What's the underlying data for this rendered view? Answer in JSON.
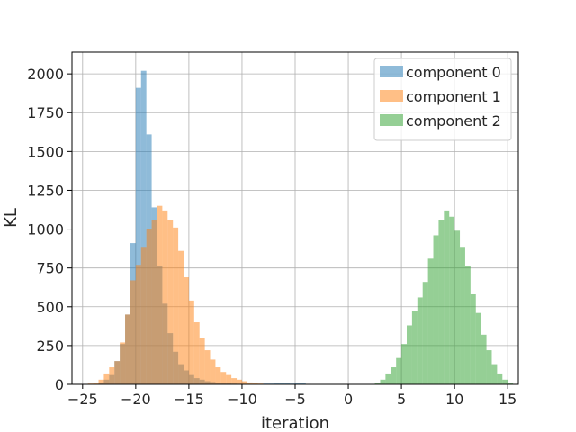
{
  "chart_data": {
    "type": "bar",
    "xlabel": "iteration",
    "ylabel": "KL",
    "xlim": [
      -26,
      16
    ],
    "ylim": [
      0,
      2140
    ],
    "xticks": [
      -25,
      -20,
      -15,
      -10,
      -5,
      0,
      5,
      10,
      15
    ],
    "yticks": [
      0,
      250,
      500,
      750,
      1000,
      1250,
      1500,
      1750,
      2000
    ],
    "grid": true,
    "legend": "top-right",
    "bin_width": 0.5,
    "series": [
      {
        "name": "component 0",
        "color": "#1f77b4",
        "alpha": 0.5,
        "bins": [
          {
            "x0": -23.5,
            "y": 10
          },
          {
            "x0": -23.0,
            "y": 30
          },
          {
            "x0": -22.5,
            "y": 60
          },
          {
            "x0": -22.0,
            "y": 150
          },
          {
            "x0": -21.5,
            "y": 260
          },
          {
            "x0": -21.0,
            "y": 450
          },
          {
            "x0": -20.5,
            "y": 910
          },
          {
            "x0": -20.0,
            "y": 1910
          },
          {
            "x0": -19.5,
            "y": 2020
          },
          {
            "x0": -19.0,
            "y": 1610
          },
          {
            "x0": -18.5,
            "y": 1140
          },
          {
            "x0": -18.0,
            "y": 760
          },
          {
            "x0": -17.5,
            "y": 520
          },
          {
            "x0": -17.0,
            "y": 330
          },
          {
            "x0": -16.5,
            "y": 210
          },
          {
            "x0": -16.0,
            "y": 130
          },
          {
            "x0": -15.5,
            "y": 90
          },
          {
            "x0": -15.0,
            "y": 60
          },
          {
            "x0": -14.5,
            "y": 40
          },
          {
            "x0": -14.0,
            "y": 30
          },
          {
            "x0": -13.5,
            "y": 20
          },
          {
            "x0": -13.0,
            "y": 15
          },
          {
            "x0": -12.5,
            "y": 10
          },
          {
            "x0": -12.0,
            "y": 8
          },
          {
            "x0": -11.5,
            "y": 6
          },
          {
            "x0": -11.0,
            "y": 5
          },
          {
            "x0": -10.5,
            "y": 4
          },
          {
            "x0": -10.0,
            "y": 3
          },
          {
            "x0": -9.5,
            "y": 3
          },
          {
            "x0": -9.0,
            "y": 3
          },
          {
            "x0": -8.5,
            "y": 3
          },
          {
            "x0": -8.0,
            "y": 5
          },
          {
            "x0": -7.5,
            "y": 5
          },
          {
            "x0": -7.0,
            "y": 10
          },
          {
            "x0": -6.5,
            "y": 8
          },
          {
            "x0": -6.0,
            "y": 8
          },
          {
            "x0": -5.5,
            "y": 5
          },
          {
            "x0": -5.0,
            "y": 10
          },
          {
            "x0": -4.5,
            "y": 8
          },
          {
            "x0": -4.0,
            "y": 3
          }
        ]
      },
      {
        "name": "component 1",
        "color": "#ff7f0e",
        "alpha": 0.5,
        "bins": [
          {
            "x0": -24.5,
            "y": 5
          },
          {
            "x0": -24.0,
            "y": 10
          },
          {
            "x0": -23.5,
            "y": 30
          },
          {
            "x0": -23.0,
            "y": 70
          },
          {
            "x0": -22.5,
            "y": 110
          },
          {
            "x0": -22.0,
            "y": 150
          },
          {
            "x0": -21.5,
            "y": 270
          },
          {
            "x0": -21.0,
            "y": 450
          },
          {
            "x0": -20.5,
            "y": 670
          },
          {
            "x0": -20.0,
            "y": 770
          },
          {
            "x0": -19.5,
            "y": 880
          },
          {
            "x0": -19.0,
            "y": 1000
          },
          {
            "x0": -18.5,
            "y": 1060
          },
          {
            "x0": -18.0,
            "y": 1150
          },
          {
            "x0": -17.5,
            "y": 1120
          },
          {
            "x0": -17.0,
            "y": 1060
          },
          {
            "x0": -16.5,
            "y": 1010
          },
          {
            "x0": -16.0,
            "y": 860
          },
          {
            "x0": -15.5,
            "y": 690
          },
          {
            "x0": -15.0,
            "y": 540
          },
          {
            "x0": -14.5,
            "y": 400
          },
          {
            "x0": -14.0,
            "y": 300
          },
          {
            "x0": -13.5,
            "y": 220
          },
          {
            "x0": -13.0,
            "y": 160
          },
          {
            "x0": -12.5,
            "y": 110
          },
          {
            "x0": -12.0,
            "y": 80
          },
          {
            "x0": -11.5,
            "y": 60
          },
          {
            "x0": -11.0,
            "y": 40
          },
          {
            "x0": -10.5,
            "y": 30
          },
          {
            "x0": -10.0,
            "y": 20
          },
          {
            "x0": -9.5,
            "y": 12
          },
          {
            "x0": -9.0,
            "y": 8
          },
          {
            "x0": -8.5,
            "y": 5
          }
        ]
      },
      {
        "name": "component 2",
        "color": "#2ca02c",
        "alpha": 0.5,
        "bins": [
          {
            "x0": 2.5,
            "y": 10
          },
          {
            "x0": 3.0,
            "y": 30
          },
          {
            "x0": 3.5,
            "y": 70
          },
          {
            "x0": 4.0,
            "y": 110
          },
          {
            "x0": 4.5,
            "y": 170
          },
          {
            "x0": 5.0,
            "y": 260
          },
          {
            "x0": 5.5,
            "y": 380
          },
          {
            "x0": 6.0,
            "y": 470
          },
          {
            "x0": 6.5,
            "y": 560
          },
          {
            "x0": 7.0,
            "y": 660
          },
          {
            "x0": 7.5,
            "y": 810
          },
          {
            "x0": 8.0,
            "y": 960
          },
          {
            "x0": 8.5,
            "y": 1060
          },
          {
            "x0": 9.0,
            "y": 1120
          },
          {
            "x0": 9.5,
            "y": 1080
          },
          {
            "x0": 10.0,
            "y": 990
          },
          {
            "x0": 10.5,
            "y": 880
          },
          {
            "x0": 11.0,
            "y": 760
          },
          {
            "x0": 11.5,
            "y": 580
          },
          {
            "x0": 12.0,
            "y": 460
          },
          {
            "x0": 12.5,
            "y": 320
          },
          {
            "x0": 13.0,
            "y": 220
          },
          {
            "x0": 13.5,
            "y": 130
          },
          {
            "x0": 14.0,
            "y": 70
          },
          {
            "x0": 14.5,
            "y": 30
          },
          {
            "x0": 15.0,
            "y": 10
          }
        ]
      }
    ]
  }
}
